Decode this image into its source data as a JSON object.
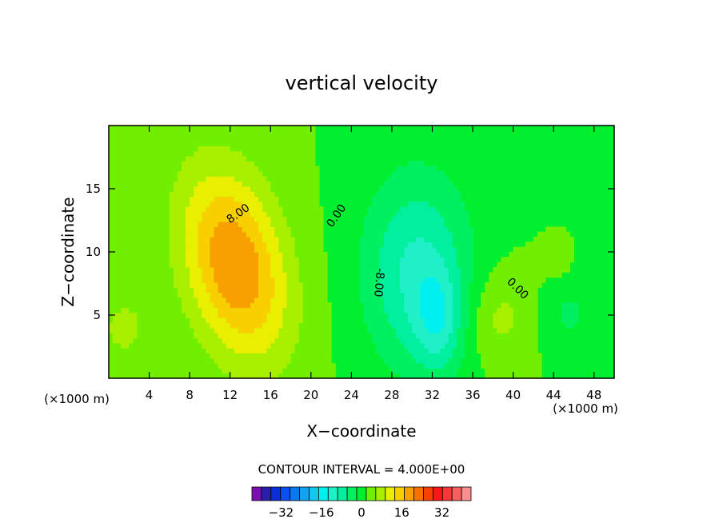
{
  "chart_data": {
    "type": "contour",
    "title": "vertical velocity",
    "xlabel": "X−coordinate",
    "ylabel": "Z−coordinate",
    "x_unit_left": "(×1000 m)",
    "x_unit_right": "(×1000 m)",
    "xlim": [
      0,
      50
    ],
    "ylim": [
      0,
      20
    ],
    "x_ticks": [
      4,
      8,
      12,
      16,
      20,
      24,
      28,
      32,
      36,
      40,
      44,
      48
    ],
    "y_ticks": [
      5,
      10,
      15
    ],
    "contour_interval_text": "CONTOUR INTERVAL = 4.000E+00",
    "contour_labels": [
      {
        "text": "8.00",
        "x": 13.0,
        "y": 12.8,
        "angle": -35
      },
      {
        "text": "0.00",
        "x": 22.8,
        "y": 12.7,
        "angle": -55
      },
      {
        "text": "-8.00",
        "x": 26.4,
        "y": 7.6,
        "angle": 95
      },
      {
        "text": "0.00",
        "x": 40.2,
        "y": 6.9,
        "angle": 45
      }
    ],
    "colorbar": {
      "levels": [
        -36,
        -32,
        -28,
        -24,
        -20,
        -16,
        -12,
        -8,
        -4,
        0,
        4,
        8,
        12,
        16,
        20,
        24,
        28,
        32,
        36
      ],
      "colors": [
        "#7a10b0",
        "#2820a8",
        "#0a2ed8",
        "#0a50f0",
        "#0878f0",
        "#10a4f0",
        "#10c8f0",
        "#00f0f0",
        "#20f0c8",
        "#00f0a0",
        "#00f060",
        "#00f030",
        "#70f000",
        "#a8f000",
        "#e8f000",
        "#f8d000",
        "#f8a000",
        "#f87000",
        "#f84000",
        "#f81818",
        "#f83838",
        "#f86060",
        "#f89090"
      ],
      "tick_labels": [
        {
          "value": -32,
          "label": "−32"
        },
        {
          "value": -16,
          "label": "−16"
        },
        {
          "value": 0,
          "label": "0"
        },
        {
          "value": 16,
          "label": "16"
        },
        {
          "value": 32,
          "label": "32"
        }
      ]
    },
    "background_color": "#00f030",
    "field_blobs": [
      {
        "x": 12.5,
        "y": 9.0,
        "sx": 3.4,
        "sy": 5.5,
        "amp": 20,
        "rot": -0.35
      },
      {
        "x": 1.5,
        "y": 4.0,
        "sx": 2.0,
        "sy": 2.2,
        "amp": 5
      },
      {
        "x": 30.5,
        "y": 8.5,
        "sx": 3.8,
        "sy": 5.6,
        "amp": -13
      },
      {
        "x": 32.5,
        "y": 4.5,
        "sx": 1.6,
        "sy": 2.8,
        "amp": -9
      },
      {
        "x": 38.6,
        "y": 4.8,
        "sx": 2.2,
        "sy": 2.6,
        "amp": 5.5
      },
      {
        "x": 45.5,
        "y": 5.2,
        "sx": 1.8,
        "sy": 2.5,
        "amp": -4.5
      },
      {
        "x": 44.5,
        "y": 9.0,
        "sx": 1.2,
        "sy": 1.2,
        "amp": 2.5
      }
    ]
  }
}
